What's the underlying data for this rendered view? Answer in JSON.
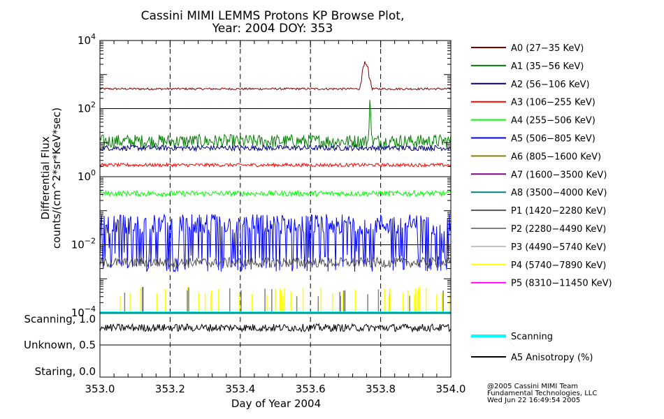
{
  "chart_data": {
    "type": "line",
    "title_line1": "Cassini MIMI LEMMS Protons KP Browse Plot,",
    "title_line2": "Year: 2004 DOY: 353",
    "xlabel": "Day of Year 2004",
    "ylabel_line1": "Differential Flux",
    "ylabel_line2": "counts/(cm^2*sr*KeV*sec)",
    "x_range": [
      353.0,
      354.0
    ],
    "x_ticks": [
      "353.0",
      "353.2",
      "353.4",
      "353.6",
      "353.8",
      "354.0"
    ],
    "y_scale": "log",
    "y_range": [
      0.0001,
      10000
    ],
    "y_ticks": [
      {
        "base": "10",
        "exp": "4"
      },
      {
        "base": "10",
        "exp": "2"
      },
      {
        "base": "10",
        "exp": "0"
      },
      {
        "base": "10",
        "exp": "−2"
      },
      {
        "base": "10",
        "exp": "−4"
      }
    ],
    "lower_panel_ticks": [
      "Scanning, 1.0",
      "Unknown, 0.5",
      "Staring, 0.0"
    ],
    "series": [
      {
        "name": "A0 (27−35 KeV)",
        "color": "#800000",
        "level": 380,
        "noise": 0.03,
        "spikes": [
          {
            "from": 353.74,
            "to": 353.775,
            "peak": 2500
          }
        ]
      },
      {
        "name": "A1 (35−56 KeV)",
        "color": "#008000",
        "level": 11,
        "noise": 0.2,
        "spikes": [
          {
            "from": 353.765,
            "to": 353.775,
            "peak": 250
          }
        ]
      },
      {
        "name": "A2 (56−106 KeV)",
        "color": "#000080",
        "level": 7,
        "noise": 0.08
      },
      {
        "name": "A3 (106−255 KeV)",
        "color": "#ff0000",
        "level": 2.2,
        "noise": 0.05
      },
      {
        "name": "A4 (255−506 KeV)",
        "color": "#00ff00",
        "level": 0.32,
        "noise": 0.08
      },
      {
        "name": "A5 (506−805 KeV)",
        "color": "#0000ff",
        "level": 0.04,
        "noise": 0.3,
        "dropouts": true
      },
      {
        "name": "A6 (805−1600 KeV)",
        "color": "#808000",
        "level": null
      },
      {
        "name": "A7 (1600−3500 KeV)",
        "color": "#800080",
        "level": null
      },
      {
        "name": "A8 (3500−4000 KeV)",
        "color": "#008080",
        "level": null
      },
      {
        "name": "P1 (1420−2280 KeV)",
        "color": "#555555",
        "level": 0.003,
        "noise": 0.15
      },
      {
        "name": "P2 (2280−4490 KeV)",
        "color": "#808080",
        "level": null
      },
      {
        "name": "P3 (4490−5740 KeV)",
        "color": "#c0c0c0",
        "level": null
      },
      {
        "name": "P4 (5740−7890 KeV)",
        "color": "#ffff00",
        "level": null
      },
      {
        "name": "P5 (8310−11450 KeV)",
        "color": "#ff00ff",
        "level": null
      }
    ],
    "lower_series": [
      {
        "name": "Scanning",
        "color": "#00ffff",
        "value": 1.0
      },
      {
        "name": "A5 Anisotropy (%)",
        "color": "#000000",
        "value": 0.88
      }
    ]
  },
  "credit": {
    "line1": "@2005 Cassini MIMI Team",
    "line2": "Fundamental Technologies, LLC",
    "line3": "Wed Jun 22 16:49:54 2005"
  }
}
